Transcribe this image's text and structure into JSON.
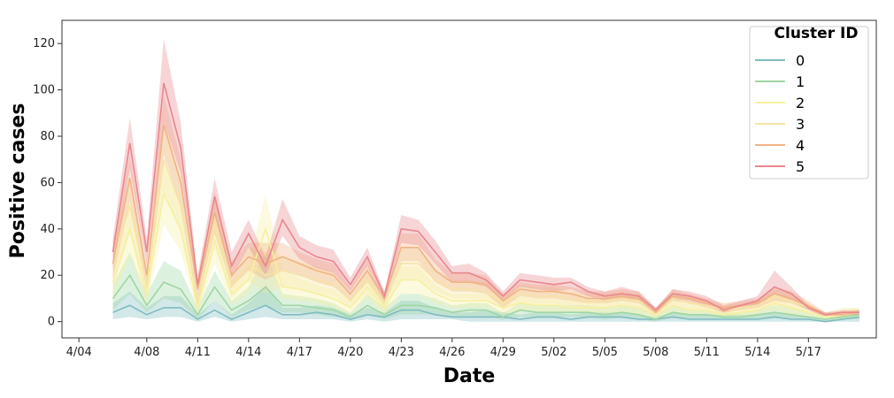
{
  "chart_data": {
    "type": "line",
    "title": "",
    "xlabel": "Date",
    "ylabel": "Positive cases",
    "ylim": [
      -7,
      130
    ],
    "xlim": [
      "2020-04-03",
      "2020-05-21"
    ],
    "x_ticks": [
      "4/04",
      "4/08",
      "4/11",
      "4/14",
      "4/17",
      "4/20",
      "4/23",
      "4/26",
      "4/29",
      "5/02",
      "5/05",
      "5/08",
      "5/11",
      "5/14",
      "5/17"
    ],
    "y_ticks": [
      0,
      20,
      40,
      60,
      80,
      100,
      120
    ],
    "grid": false,
    "legend": {
      "title": "Cluster ID",
      "placement": "top-right"
    },
    "x": [
      "2020-04-06",
      "2020-04-07",
      "2020-04-08",
      "2020-04-09",
      "2020-04-10",
      "2020-04-11",
      "2020-04-12",
      "2020-04-13",
      "2020-04-14",
      "2020-04-15",
      "2020-04-16",
      "2020-04-17",
      "2020-04-18",
      "2020-04-19",
      "2020-04-20",
      "2020-04-21",
      "2020-04-22",
      "2020-04-23",
      "2020-04-24",
      "2020-04-25",
      "2020-04-26",
      "2020-04-27",
      "2020-04-28",
      "2020-04-29",
      "2020-04-30",
      "2020-05-01",
      "2020-05-02",
      "2020-05-03",
      "2020-05-04",
      "2020-05-05",
      "2020-05-06",
      "2020-05-07",
      "2020-05-08",
      "2020-05-09",
      "2020-05-10",
      "2020-05-11",
      "2020-05-12",
      "2020-05-13",
      "2020-05-14",
      "2020-05-15",
      "2020-05-16",
      "2020-05-17",
      "2020-05-18",
      "2020-05-19",
      "2020-05-20"
    ],
    "series": [
      {
        "name": "0",
        "color": "#7fbcc0",
        "values": [
          4,
          7,
          3,
          6,
          6,
          1,
          5,
          1,
          4,
          7,
          3,
          3,
          4,
          3,
          1,
          3,
          2,
          5,
          5,
          3,
          2,
          2,
          2,
          2,
          1,
          2,
          2,
          1,
          2,
          2,
          2,
          1,
          1,
          2,
          1,
          1,
          1,
          1,
          1,
          2,
          1,
          1,
          0,
          1,
          2
        ],
        "lower": [
          1,
          2,
          1,
          2,
          2,
          0,
          2,
          0,
          1,
          2,
          1,
          1,
          1,
          1,
          0,
          1,
          0,
          1,
          1,
          1,
          1,
          0,
          0,
          0,
          0,
          0,
          0,
          0,
          0,
          0,
          0,
          0,
          0,
          0,
          0,
          0,
          0,
          0,
          0,
          0,
          0,
          0,
          0,
          0,
          0
        ],
        "upper": [
          8,
          13,
          6,
          11,
          11,
          3,
          9,
          3,
          8,
          15,
          6,
          6,
          7,
          6,
          3,
          6,
          4,
          9,
          9,
          6,
          4,
          4,
          5,
          4,
          3,
          4,
          4,
          3,
          4,
          4,
          4,
          3,
          2,
          4,
          3,
          3,
          3,
          3,
          3,
          4,
          3,
          2,
          1,
          2,
          4
        ]
      },
      {
        "name": "1",
        "color": "#9fd6a4",
        "values": [
          10,
          20,
          7,
          17,
          14,
          3,
          15,
          5,
          9,
          15,
          7,
          7,
          6,
          5,
          2,
          7,
          3,
          7,
          7,
          6,
          4,
          5,
          5,
          2,
          5,
          4,
          4,
          4,
          4,
          3,
          4,
          3,
          1,
          4,
          3,
          3,
          2,
          2,
          3,
          4,
          3,
          2,
          1,
          2,
          3
        ],
        "lower": [
          5,
          12,
          4,
          10,
          8,
          1,
          9,
          2,
          5,
          7,
          4,
          4,
          3,
          2,
          1,
          3,
          1,
          3,
          3,
          3,
          2,
          2,
          2,
          1,
          2,
          2,
          2,
          2,
          2,
          1,
          2,
          1,
          0,
          2,
          1,
          1,
          1,
          1,
          1,
          2,
          1,
          1,
          0,
          1,
          1
        ],
        "upper": [
          16,
          30,
          12,
          26,
          22,
          6,
          22,
          9,
          15,
          30,
          12,
          11,
          10,
          8,
          4,
          12,
          6,
          12,
          12,
          10,
          7,
          8,
          8,
          4,
          8,
          7,
          7,
          7,
          7,
          6,
          7,
          6,
          3,
          7,
          5,
          5,
          4,
          4,
          5,
          7,
          6,
          4,
          2,
          3,
          5
        ]
      },
      {
        "name": "2",
        "color": "#f6f0a0",
        "values": [
          17,
          40,
          12,
          55,
          40,
          6,
          35,
          12,
          18,
          40,
          15,
          14,
          12,
          10,
          6,
          15,
          6,
          18,
          18,
          12,
          9,
          9,
          9,
          6,
          8,
          7,
          7,
          6,
          6,
          6,
          7,
          6,
          3,
          7,
          5,
          5,
          3,
          4,
          5,
          8,
          6,
          4,
          2,
          3,
          4
        ],
        "lower": [
          10,
          28,
          7,
          42,
          30,
          3,
          25,
          7,
          12,
          25,
          10,
          9,
          8,
          6,
          3,
          10,
          3,
          12,
          12,
          8,
          6,
          6,
          6,
          3,
          5,
          4,
          4,
          4,
          4,
          3,
          4,
          3,
          1,
          4,
          3,
          3,
          2,
          2,
          3,
          5,
          3,
          2,
          1,
          1,
          2
        ],
        "upper": [
          24,
          52,
          18,
          68,
          50,
          10,
          45,
          17,
          25,
          55,
          22,
          19,
          16,
          14,
          9,
          20,
          9,
          24,
          24,
          16,
          12,
          12,
          12,
          9,
          11,
          10,
          10,
          9,
          9,
          9,
          10,
          9,
          5,
          10,
          8,
          7,
          5,
          6,
          7,
          11,
          9,
          6,
          3,
          5,
          6
        ]
      },
      {
        "name": "3",
        "color": "#f5e4a6",
        "values": [
          25,
          50,
          15,
          70,
          50,
          8,
          42,
          15,
          25,
          20,
          22,
          20,
          18,
          16,
          9,
          18,
          8,
          25,
          25,
          18,
          14,
          14,
          13,
          8,
          12,
          11,
          11,
          10,
          9,
          9,
          10,
          9,
          4,
          10,
          8,
          7,
          5,
          6,
          7,
          11,
          9,
          6,
          3,
          4,
          4
        ],
        "lower": [
          15,
          38,
          9,
          55,
          38,
          4,
          32,
          10,
          18,
          12,
          15,
          14,
          12,
          11,
          6,
          12,
          5,
          18,
          18,
          13,
          10,
          10,
          9,
          5,
          8,
          7,
          7,
          7,
          6,
          6,
          7,
          6,
          2,
          7,
          5,
          5,
          3,
          4,
          5,
          7,
          6,
          4,
          2,
          2,
          2
        ],
        "upper": [
          35,
          62,
          22,
          85,
          62,
          12,
          52,
          20,
          32,
          30,
          28,
          26,
          24,
          21,
          12,
          24,
          11,
          32,
          32,
          23,
          18,
          18,
          17,
          11,
          16,
          15,
          15,
          13,
          12,
          12,
          13,
          12,
          6,
          13,
          11,
          9,
          7,
          8,
          9,
          14,
          12,
          8,
          4,
          6,
          6
        ]
      },
      {
        "name": "4",
        "color": "#f0b384",
        "values": [
          25,
          62,
          20,
          85,
          60,
          14,
          47,
          20,
          28,
          25,
          28,
          25,
          22,
          20,
          12,
          22,
          10,
          32,
          32,
          22,
          17,
          17,
          16,
          9,
          14,
          13,
          13,
          12,
          10,
          10,
          11,
          10,
          4,
          11,
          10,
          8,
          6,
          7,
          8,
          12,
          10,
          7,
          3,
          3,
          4
        ],
        "lower": [
          18,
          52,
          14,
          72,
          50,
          10,
          38,
          15,
          22,
          18,
          22,
          20,
          17,
          15,
          9,
          17,
          7,
          26,
          26,
          17,
          13,
          13,
          12,
          6,
          11,
          10,
          10,
          9,
          8,
          8,
          9,
          8,
          3,
          9,
          8,
          6,
          4,
          5,
          6,
          9,
          8,
          5,
          2,
          2,
          3
        ],
        "upper": [
          32,
          72,
          26,
          98,
          70,
          18,
          56,
          26,
          34,
          34,
          34,
          30,
          27,
          25,
          15,
          27,
          13,
          38,
          38,
          27,
          21,
          21,
          20,
          12,
          17,
          16,
          16,
          15,
          13,
          13,
          14,
          13,
          6,
          14,
          12,
          10,
          8,
          9,
          10,
          15,
          13,
          9,
          4,
          4,
          5
        ]
      },
      {
        "name": "5",
        "color": "#e8878d",
        "values": [
          30,
          77,
          30,
          103,
          75,
          16,
          54,
          24,
          38,
          24,
          44,
          32,
          28,
          26,
          16,
          28,
          11,
          40,
          39,
          30,
          21,
          21,
          18,
          11,
          18,
          17,
          16,
          17,
          13,
          11,
          12,
          11,
          5,
          12,
          11,
          9,
          5,
          7,
          9,
          15,
          12,
          6,
          3,
          4,
          4
        ],
        "lower": [
          23,
          66,
          25,
          86,
          64,
          13,
          46,
          19,
          32,
          20,
          37,
          27,
          23,
          21,
          13,
          24,
          9,
          34,
          33,
          25,
          17,
          17,
          15,
          9,
          15,
          14,
          13,
          14,
          11,
          9,
          10,
          9,
          4,
          10,
          9,
          7,
          4,
          6,
          7,
          12,
          9,
          5,
          2,
          3,
          3
        ],
        "upper": [
          36,
          88,
          36,
          122,
          86,
          20,
          62,
          30,
          44,
          28,
          53,
          37,
          33,
          31,
          19,
          32,
          13,
          46,
          44,
          35,
          24,
          25,
          21,
          13,
          21,
          20,
          19,
          19,
          15,
          13,
          15,
          13,
          6,
          14,
          13,
          11,
          7,
          9,
          11,
          22,
          15,
          7,
          4,
          5,
          5
        ]
      }
    ]
  }
}
